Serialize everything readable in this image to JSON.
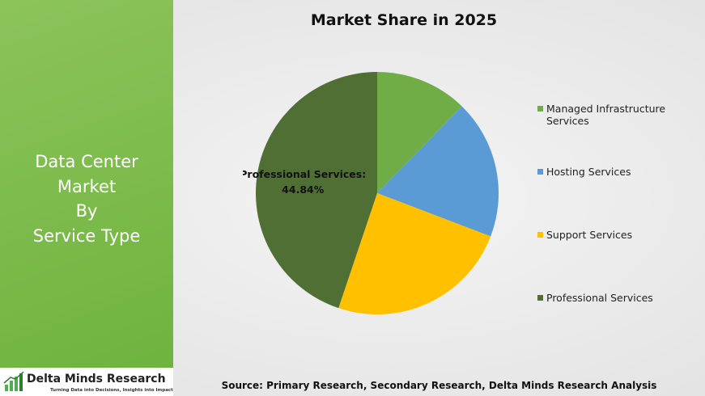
{
  "left_panel": {
    "title_lines": [
      "Data Center",
      "Market",
      "By",
      "Service Type"
    ]
  },
  "logo": {
    "name": "Delta Minds Research",
    "tagline": "Turning Data into Decisions, Insights into Impact"
  },
  "chart_data": {
    "type": "pie",
    "title": "Market Share in 2025",
    "categories": [
      "Managed Infrastructure Services",
      "Hosting Services",
      "Support Services",
      "Professional Services"
    ],
    "values": [
      12.3,
      18.5,
      24.36,
      44.84
    ],
    "value_labels": [
      null,
      null,
      null,
      "Professional Services: 44.84%"
    ],
    "colors": [
      "#70ad47",
      "#5b9bd5",
      "#ffc000",
      "#4f6f35"
    ],
    "legend": "right"
  },
  "source": "Source: Primary Research, Secondary Research, Delta Minds Research Analysis"
}
